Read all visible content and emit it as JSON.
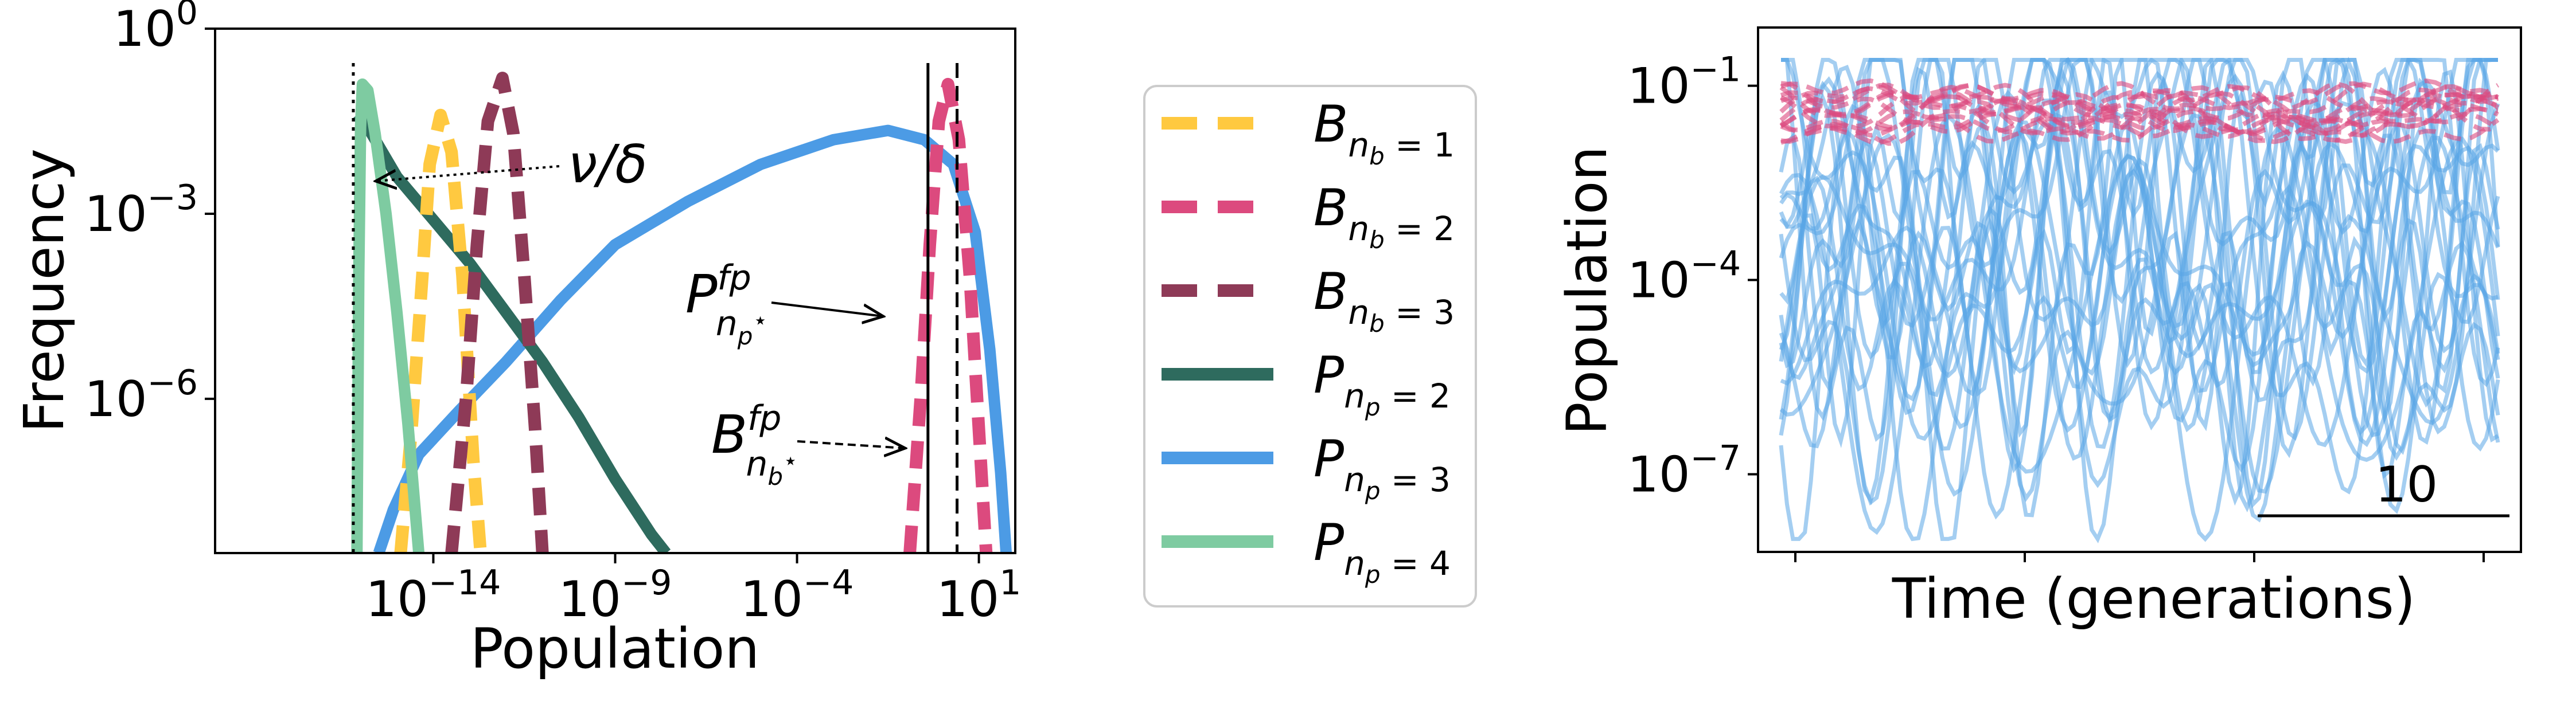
{
  "chart_data": [
    {
      "type": "line",
      "xlabel": "Population",
      "ylabel": "Frequency",
      "xscale": "log",
      "yscale": "log",
      "xlim_exp": [
        -20,
        2
      ],
      "ylim_exp": [
        -8.5,
        0
      ],
      "xticks": [
        {
          "exp": -14,
          "label_base": "10",
          "label_exp": "−14"
        },
        {
          "exp": -9,
          "label_base": "10",
          "label_exp": "−9"
        },
        {
          "exp": -4,
          "label_base": "10",
          "label_exp": "−4"
        },
        {
          "exp": 1,
          "label_base": "10",
          "label_exp": "1"
        }
      ],
      "yticks": [
        {
          "exp": 0,
          "label_base": "10",
          "label_exp": "0"
        },
        {
          "exp": -3,
          "label_base": "10",
          "label_exp": "−3"
        },
        {
          "exp": -6,
          "label_base": "10",
          "label_exp": "−6"
        }
      ],
      "series": [
        {
          "key": "B1",
          "style": "dashed",
          "color": "#FFC940",
          "points": [
            [
              -14.9,
              -8.5
            ],
            [
              -14.6,
              -6.5
            ],
            [
              -14.3,
              -4
            ],
            [
              -14.1,
              -2.2
            ],
            [
              -13.8,
              -1.4
            ],
            [
              -13.5,
              -2
            ],
            [
              -13.2,
              -4
            ],
            [
              -12.9,
              -7
            ],
            [
              -12.7,
              -8.5
            ]
          ]
        },
        {
          "key": "B2",
          "style": "dashed",
          "color": "#DC4A7E",
          "points": [
            [
              -0.9,
              -8.5
            ],
            [
              -0.6,
              -6
            ],
            [
              -0.35,
              -3.5
            ],
            [
              -0.1,
              -1.5
            ],
            [
              0.15,
              -0.9
            ],
            [
              0.45,
              -1.8
            ],
            [
              0.75,
              -4
            ],
            [
              1.0,
              -6.5
            ],
            [
              1.2,
              -8.5
            ]
          ]
        },
        {
          "key": "B3",
          "style": "dashed",
          "color": "#8E3A57",
          "points": [
            [
              -13.5,
              -8.5
            ],
            [
              -13.1,
              -6
            ],
            [
              -12.8,
              -3.5
            ],
            [
              -12.5,
              -1.5
            ],
            [
              -12.1,
              -0.8
            ],
            [
              -11.8,
              -1.7
            ],
            [
              -11.5,
              -4
            ],
            [
              -11.2,
              -6.5
            ],
            [
              -11.0,
              -8.5
            ]
          ]
        },
        {
          "key": "P2",
          "style": "solid",
          "color": "#2E6B5E",
          "points": [
            [
              -16.1,
              -1.4
            ],
            [
              -15.7,
              -1.7
            ],
            [
              -15.0,
              -2.4
            ],
            [
              -14.0,
              -3.1
            ],
            [
              -13.0,
              -3.8
            ],
            [
              -12.0,
              -4.6
            ],
            [
              -11.0,
              -5.4
            ],
            [
              -10.0,
              -6.3
            ],
            [
              -9.0,
              -7.3
            ],
            [
              -8.0,
              -8.2
            ],
            [
              -7.6,
              -8.5
            ]
          ]
        },
        {
          "key": "P3",
          "style": "solid",
          "color": "#4C9BE5",
          "points": [
            [
              -15.5,
              -8.5
            ],
            [
              -15.1,
              -7.8
            ],
            [
              -14.4,
              -6.9
            ],
            [
              -13.3,
              -6.2
            ],
            [
              -12.0,
              -5.4
            ],
            [
              -10.5,
              -4.4
            ],
            [
              -9.0,
              -3.5
            ],
            [
              -7.0,
              -2.8
            ],
            [
              -5.0,
              -2.2
            ],
            [
              -3.0,
              -1.8
            ],
            [
              -1.5,
              -1.65
            ],
            [
              -0.5,
              -1.8
            ],
            [
              0.3,
              -2.2
            ],
            [
              0.9,
              -3.3
            ],
            [
              1.3,
              -5.2
            ],
            [
              1.6,
              -7.2
            ],
            [
              1.75,
              -8.5
            ]
          ]
        },
        {
          "key": "P4",
          "style": "solid",
          "color": "#7ECBA1",
          "points": [
            [
              -16.1,
              -8.5
            ],
            [
              -16.05,
              -4
            ],
            [
              -16.0,
              -1.6
            ],
            [
              -15.95,
              -0.9
            ],
            [
              -15.8,
              -1.0
            ],
            [
              -15.6,
              -1.7
            ],
            [
              -15.3,
              -3.0
            ],
            [
              -15.0,
              -4.6
            ],
            [
              -14.7,
              -6.4
            ],
            [
              -14.4,
              -8.5
            ]
          ]
        }
      ],
      "vlines": [
        {
          "x_exp": -16.2,
          "style": "dotted"
        },
        {
          "x_exp": -0.4,
          "style": "solid"
        },
        {
          "x_exp": 0.4,
          "style": "dashed"
        }
      ],
      "annotations": {
        "nu_delta": "ν/δ",
        "P_fp_base": "P",
        "P_fp_sup": "fp",
        "P_fp_sub": "n",
        "P_fp_subsub": "p",
        "P_fp_star": "⋆",
        "B_fp_base": "B",
        "B_fp_sup": "fp",
        "B_fp_sub": "n",
        "B_fp_subsub": "b",
        "B_fp_star": "⋆"
      }
    },
    {
      "type": "line",
      "xlabel": "Time (generations)",
      "ylabel": "Population",
      "yscale": "log",
      "ylim_exp": [
        -8.2,
        -0.1
      ],
      "yticks": [
        {
          "exp": -1,
          "label_base": "10",
          "label_exp": "−1"
        },
        {
          "exp": -4,
          "label_base": "10",
          "label_exp": "−4"
        },
        {
          "exp": -7,
          "label_base": "10",
          "label_exp": "−7"
        }
      ],
      "xticks_count": 4,
      "scale_bar": {
        "label": "10",
        "length_fraction": 0.33
      },
      "series_groups": [
        {
          "name": "P",
          "color": "#5AA5E6",
          "count": 22,
          "style": "solid"
        },
        {
          "name": "B",
          "color": "#DC4A7E",
          "count": 14,
          "style": "dashed"
        }
      ]
    }
  ],
  "legend": [
    {
      "base": "B",
      "sub": "n",
      "subsub": "b",
      "eq": "= 1",
      "color": "#FFC940",
      "style": "dashed"
    },
    {
      "base": "B",
      "sub": "n",
      "subsub": "b",
      "eq": "= 2",
      "color": "#DC4A7E",
      "style": "dashed"
    },
    {
      "base": "B",
      "sub": "n",
      "subsub": "b",
      "eq": "= 3",
      "color": "#8E3A57",
      "style": "dashed"
    },
    {
      "base": "P",
      "sub": "n",
      "subsub": "p",
      "eq": "= 2",
      "color": "#2E6B5E",
      "style": "solid"
    },
    {
      "base": "P",
      "sub": "n",
      "subsub": "p",
      "eq": "= 3",
      "color": "#4C9BE5",
      "style": "solid"
    },
    {
      "base": "P",
      "sub": "n",
      "subsub": "p",
      "eq": "= 4",
      "color": "#7ECBA1",
      "style": "solid"
    }
  ]
}
